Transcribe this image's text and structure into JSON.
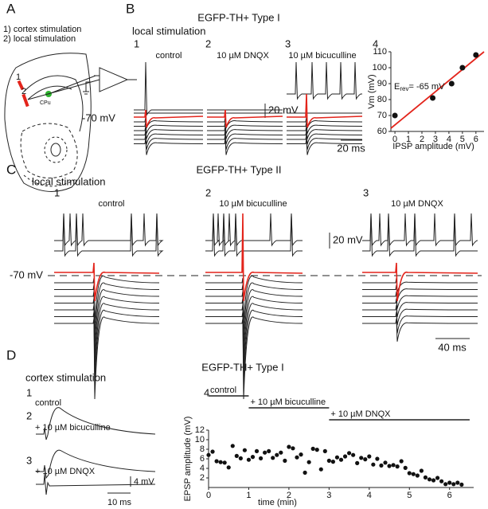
{
  "panel_a": {
    "letter": "A",
    "legend": [
      "1) cortex stimulation",
      "2) local stimulation"
    ],
    "marker_1": "1",
    "marker_2": "2",
    "region": "CPu"
  },
  "panel_b": {
    "letter": "B",
    "title": "EGFP-TH+ Type I",
    "subtitle": "local stimulation",
    "conditions": [
      {
        "number": "1",
        "label": "control"
      },
      {
        "number": "2",
        "label": "10 µM DNQX"
      },
      {
        "number": "3",
        "label": "10 µM bicuculline"
      }
    ],
    "voltage_scale": "20 mV",
    "time_scale": "20 ms",
    "baseline": "-70 mV",
    "plot_number": "4"
  },
  "panel_c": {
    "letter": "C",
    "title": "EGFP-TH+ Type II",
    "subtitle": "local stimulation",
    "conditions": [
      {
        "number": "1",
        "label": "control"
      },
      {
        "number": "2",
        "label": "10 µM bicuculline"
      },
      {
        "number": "3",
        "label": "10 µM DNQX"
      }
    ],
    "voltage_scale": "20 mV",
    "time_scale": "40 ms",
    "baseline": "-70 mV"
  },
  "panel_d": {
    "letter": "D",
    "title": "EGFP-TH+ Type I",
    "subtitle": "cortex stimulation",
    "conditions": [
      {
        "number": "1",
        "label": "control"
      },
      {
        "number": "2",
        "label": "+ 10 µM bicuculline"
      },
      {
        "number": "3",
        "label": "+ 10 µM DNQX"
      }
    ],
    "voltage_scale": "4 mV",
    "time_scale": "10 ms",
    "plot_number": "4"
  },
  "chart_data": [
    {
      "type": "scatter",
      "x_label": "IPSP amplitude (mV)",
      "y_label": "Vm (mV)",
      "annotation": {
        "symbol": "E",
        "subscript": "rev",
        "text": "= -65 mV"
      },
      "xlim": [
        -0.3,
        6.6
      ],
      "ylim": [
        60,
        110
      ],
      "xticks": [
        0,
        1,
        2,
        3,
        4,
        5,
        6
      ],
      "yticks": [
        60,
        70,
        80,
        90,
        100,
        110
      ],
      "x": [
        0,
        2.8,
        4.2,
        5,
        6
      ],
      "values": [
        70,
        81,
        90,
        100,
        108
      ],
      "color": "#111111",
      "fit_line": {
        "x": [
          -0.3,
          6.6
        ],
        "y": [
          62,
          110
        ],
        "color": "#e3241b"
      }
    },
    {
      "type": "scatter",
      "x_label": "time (min)",
      "y_label": "EPSP amplitude (mV)",
      "xlim": [
        0,
        6.6
      ],
      "ylim": [
        0,
        12
      ],
      "xticks": [
        0,
        1,
        2,
        3,
        4,
        5,
        6
      ],
      "yticks": [
        2,
        4,
        6,
        8,
        10,
        12
      ],
      "x": [
        0,
        0.1,
        0.2,
        0.3,
        0.4,
        0.5,
        0.6,
        0.7,
        0.8,
        0.9,
        1,
        1.1,
        1.2,
        1.3,
        1.4,
        1.5,
        1.6,
        1.7,
        1.8,
        1.9,
        2,
        2.1,
        2.2,
        2.3,
        2.4,
        2.5,
        2.6,
        2.7,
        2.8,
        2.9,
        3,
        3.1,
        3.2,
        3.3,
        3.4,
        3.5,
        3.6,
        3.7,
        3.8,
        3.9,
        4,
        4.1,
        4.2,
        4.3,
        4.4,
        4.5,
        4.6,
        4.7,
        4.8,
        4.9,
        5,
        5.1,
        5.2,
        5.3,
        5.4,
        5.5,
        5.6,
        5.7,
        5.8,
        5.9,
        6,
        6.1,
        6.2,
        6.3
      ],
      "values": [
        6.8,
        7.5,
        5.5,
        5.3,
        5.2,
        4.2,
        8.7,
        6.6,
        6.1,
        7.8,
        5.8,
        6.4,
        7.6,
        6.1,
        7.3,
        7.6,
        6.2,
        6.8,
        7.3,
        5.6,
        8.5,
        8.2,
        6.3,
        6.9,
        3.1,
        5.3,
        8.1,
        7.9,
        3.8,
        7.6,
        5.6,
        5.4,
        6.3,
        5.8,
        6.5,
        7.2,
        6.8,
        5.1,
        6.2,
        5.9,
        6.5,
        4.8,
        6.0,
        4.6,
        5.2,
        4.5,
        4.7,
        4.4,
        5.5,
        4.1,
        3.0,
        2.8,
        2.5,
        3.5,
        2.1,
        1.7,
        1.5,
        2.0,
        1.3,
        0.7,
        1.0,
        0.7,
        1.0,
        0.6
      ],
      "color": "#111111",
      "periods": [
        {
          "label": "control",
          "start": 0,
          "end": 1
        },
        {
          "label": "+ 10 µM bicuculline",
          "start": 1,
          "end": 3
        },
        {
          "label": "+ 10 µM DNQX",
          "start": 3,
          "end": 6.5
        }
      ]
    }
  ]
}
